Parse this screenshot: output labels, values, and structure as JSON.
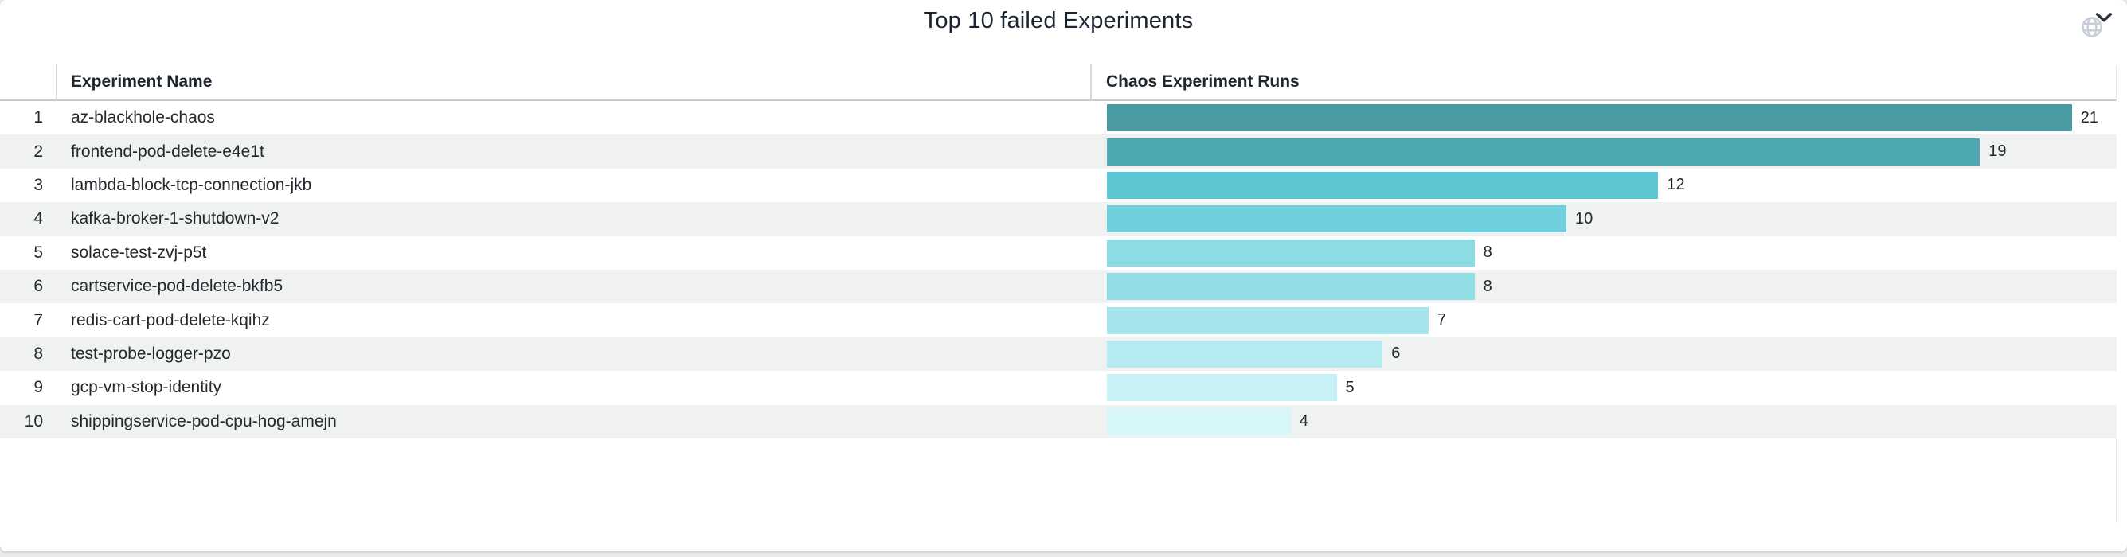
{
  "panel": {
    "title": "Top 10 failed Experiments"
  },
  "table": {
    "columns": {
      "name": "Experiment Name",
      "runs": "Chaos Experiment Runs"
    },
    "rows": [
      {
        "rank": "1",
        "name": "az-blackhole-chaos",
        "runs": "21"
      },
      {
        "rank": "2",
        "name": "frontend-pod-delete-e4e1t",
        "runs": "19"
      },
      {
        "rank": "3",
        "name": "lambda-block-tcp-connection-jkb",
        "runs": "12"
      },
      {
        "rank": "4",
        "name": "kafka-broker-1-shutdown-v2",
        "runs": "10"
      },
      {
        "rank": "5",
        "name": "solace-test-zvj-p5t",
        "runs": "8"
      },
      {
        "rank": "6",
        "name": "cartservice-pod-delete-bkfb5",
        "runs": "8"
      },
      {
        "rank": "7",
        "name": "redis-cart-pod-delete-kqihz",
        "runs": "7"
      },
      {
        "rank": "8",
        "name": "test-probe-logger-pzo",
        "runs": "6"
      },
      {
        "rank": "9",
        "name": "gcp-vm-stop-identity",
        "runs": "5"
      },
      {
        "rank": "10",
        "name": "shippingservice-pod-cpu-hog-amejn",
        "runs": "4"
      }
    ]
  },
  "icons": {
    "globe": "globe-icon",
    "sort": "chevron-down-icon"
  },
  "colors": {
    "title_text": "#1a2433",
    "table_text": "#24292e",
    "header_border": "#c6cacd",
    "divider": "#d8d9da",
    "row_stripe": "#f0f1f1",
    "globe_icon": "#c9cfd9",
    "chevron_icon": "#2b313b",
    "card_background": "#ffffff",
    "page_background": "#e9eaeb"
  },
  "chart_data": {
    "type": "bar",
    "orientation": "horizontal",
    "title": "Top 10 failed Experiments",
    "category_axis_label": "Experiment Name",
    "value_axis_label": "Chaos Experiment Runs",
    "categories": [
      "az-blackhole-chaos",
      "frontend-pod-delete-e4e1t",
      "lambda-block-tcp-connection-jkb",
      "kafka-broker-1-shutdown-v2",
      "solace-test-zvj-p5t",
      "cartservice-pod-delete-bkfb5",
      "redis-cart-pod-delete-kqihz",
      "test-probe-logger-pzo",
      "gcp-vm-stop-identity",
      "shippingservice-pod-cpu-hog-amejn"
    ],
    "values": [
      21,
      19,
      12,
      10,
      8,
      8,
      7,
      6,
      5,
      4
    ],
    "ranks": [
      1,
      2,
      3,
      4,
      5,
      6,
      7,
      8,
      9,
      10
    ],
    "xlim": [
      0,
      22
    ],
    "value_labels_shown": true,
    "grid": false,
    "legend": "none",
    "bar_colors": [
      "#4a9aa4",
      "#4da8b2",
      "#5cc5d1",
      "#71cedc",
      "#8cdce4",
      "#90dde5",
      "#a4e4ea",
      "#b5ebf0",
      "#c8f1f5",
      "#d7f6f9"
    ]
  }
}
